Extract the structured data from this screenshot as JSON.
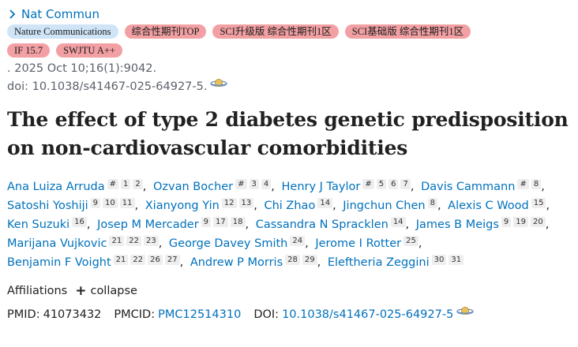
{
  "journal": {
    "label": "Nat Commun"
  },
  "badges": [
    {
      "label": "Nature Communications",
      "color": "#cfe4f7"
    },
    {
      "label": "综合性期刊TOP",
      "color": "#f2a0a3"
    },
    {
      "label": "SCI升级版 综合性期刊1区",
      "color": "#f2a0a3"
    },
    {
      "label": "SCI基础版 综合性期刊1区",
      "color": "#f2a0a3"
    },
    {
      "label": "IF 15.7",
      "color": "#f2a0a3"
    },
    {
      "label": "SWJTU A++",
      "color": "#f2a0a3"
    }
  ],
  "citation": ". 2025 Oct 10;16(1):9042.",
  "doi_line": "doi: 10.1038/s41467-025-64927-5.",
  "title": "The effect of type 2 diabetes genetic predisposition on non-cardiovascular comorbidities",
  "authors": [
    {
      "name": "Ana Luiza Arruda",
      "affs": [
        "#",
        "1",
        "2"
      ]
    },
    {
      "name": "Ozvan Bocher",
      "affs": [
        "#",
        "3",
        "4"
      ]
    },
    {
      "name": "Henry J Taylor",
      "affs": [
        "#",
        "5",
        "6",
        "7"
      ]
    },
    {
      "name": "Davis Cammann",
      "affs": [
        "#",
        "8"
      ]
    },
    {
      "name": "Satoshi Yoshiji",
      "affs": [
        "9",
        "10",
        "11"
      ]
    },
    {
      "name": "Xianyong Yin",
      "affs": [
        "12",
        "13"
      ]
    },
    {
      "name": "Chi Zhao",
      "affs": [
        "14"
      ]
    },
    {
      "name": "Jingchun Chen",
      "affs": [
        "8"
      ]
    },
    {
      "name": "Alexis C Wood",
      "affs": [
        "15"
      ]
    },
    {
      "name": "Ken Suzuki",
      "affs": [
        "16"
      ]
    },
    {
      "name": "Josep M Mercader",
      "affs": [
        "9",
        "17",
        "18"
      ]
    },
    {
      "name": "Cassandra N Spracklen",
      "affs": [
        "14"
      ]
    },
    {
      "name": "James B Meigs",
      "affs": [
        "9",
        "19",
        "20"
      ]
    },
    {
      "name": "Marijana Vujkovic",
      "affs": [
        "21",
        "22",
        "23"
      ]
    },
    {
      "name": "George Davey Smith",
      "affs": [
        "24"
      ]
    },
    {
      "name": "Jerome I Rotter",
      "affs": [
        "25"
      ]
    },
    {
      "name": "Benjamin F Voight",
      "affs": [
        "21",
        "22",
        "26",
        "27"
      ]
    },
    {
      "name": "Andrew P Morris",
      "affs": [
        "28",
        "29"
      ]
    },
    {
      "name": "Eleftheria Zeggini",
      "affs": [
        "30",
        "31"
      ]
    }
  ],
  "affiliations": {
    "label": "Affiliations",
    "toggle_label": "collapse"
  },
  "ids": {
    "pmid_label": "PMID:",
    "pmid": "41073432",
    "pmcid_label": "PMCID:",
    "pmcid": "PMC12514310",
    "doi_label": "DOI:",
    "doi": "10.1038/s41467-025-64927-5"
  },
  "colors": {
    "link": "#0071bc",
    "badge_blue": "#cfe4f7",
    "badge_red": "#f2a0a3",
    "muted": "#5b616b"
  },
  "icons": [
    "chevron-right-icon",
    "plus-icon",
    "saturn-icon"
  ]
}
